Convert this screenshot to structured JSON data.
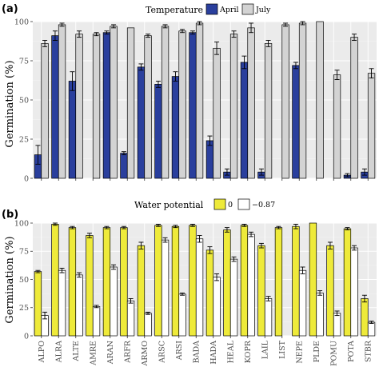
{
  "chart_data": [
    {
      "type": "bar",
      "panel_label": "(a)",
      "ylabel": "Germination (%)",
      "ylim": [
        0,
        100
      ],
      "yticks": [
        0,
        25,
        50,
        75,
        100
      ],
      "legend": {
        "title": "Temperature",
        "placement": "top-center"
      },
      "categories": [
        "ALPO",
        "ALRA",
        "ALTE",
        "AMRE",
        "ARAN",
        "ARFR",
        "ARMO",
        "ARSC",
        "ARSI",
        "BADA",
        "HADA",
        "HEAL",
        "KOPR",
        "LAIL",
        "LIST",
        "NEPE",
        "PLDE",
        "POMU",
        "POTA",
        "STBR"
      ],
      "series": [
        {
          "name": "April",
          "color": "#2a3f9d",
          "values": [
            15,
            91,
            62,
            0,
            93,
            16,
            71,
            60,
            65,
            93,
            24,
            4,
            74,
            4,
            0,
            72,
            0,
            0,
            2,
            4
          ],
          "errors": [
            6,
            3,
            6,
            0,
            1,
            1,
            2,
            2,
            3,
            1,
            3,
            2,
            4,
            2,
            0,
            2,
            0,
            0,
            1,
            2
          ]
        },
        {
          "name": "July",
          "color": "#d3d3d3",
          "values": [
            86,
            98,
            92,
            92,
            97,
            96,
            91,
            97,
            94,
            99,
            83,
            92,
            96,
            86,
            98,
            99,
            100,
            66,
            90,
            67
          ],
          "errors": [
            2,
            1,
            2,
            1,
            1,
            0,
            1,
            1,
            1,
            1,
            4,
            2,
            3,
            2,
            1,
            1,
            0,
            3,
            2,
            3
          ]
        }
      ]
    },
    {
      "type": "bar",
      "panel_label": "(b)",
      "ylabel": "Germination (%)",
      "ylim": [
        0,
        100
      ],
      "yticks": [
        0,
        25,
        50,
        75,
        100
      ],
      "legend": {
        "title": "Water potential",
        "placement": "top-center"
      },
      "categories": [
        "ALPO",
        "ALRA",
        "ALTE",
        "AMRE",
        "ARAN",
        "ARFR",
        "ARMO",
        "ARSC",
        "ARSI",
        "BADA",
        "HADA",
        "HEAL",
        "KOPR",
        "LAIL",
        "LIST",
        "NEPE",
        "PLDE",
        "POMU",
        "POTA",
        "STBR"
      ],
      "series": [
        {
          "name": "0",
          "color": "#eeea3a",
          "values": [
            57,
            99,
            96,
            89,
            96,
            96,
            80,
            98,
            97,
            98,
            76,
            94,
            98,
            80,
            96,
            97,
            100,
            80,
            95,
            33
          ],
          "errors": [
            1,
            1,
            1,
            2,
            1,
            1,
            3,
            1,
            1,
            1,
            3,
            2,
            1,
            2,
            1,
            2,
            0,
            3,
            1,
            3
          ]
        },
        {
          "name": "−0.87",
          "color": "#ffffff",
          "values": [
            18,
            58,
            54,
            26,
            61,
            31,
            20,
            85,
            37,
            86,
            52,
            68,
            90,
            33,
            0,
            58,
            38,
            20,
            78,
            12
          ],
          "errors": [
            3,
            2,
            2,
            1,
            2,
            2,
            1,
            2,
            1,
            3,
            3,
            2,
            2,
            2,
            0,
            3,
            2,
            2,
            2,
            1
          ]
        }
      ]
    }
  ]
}
